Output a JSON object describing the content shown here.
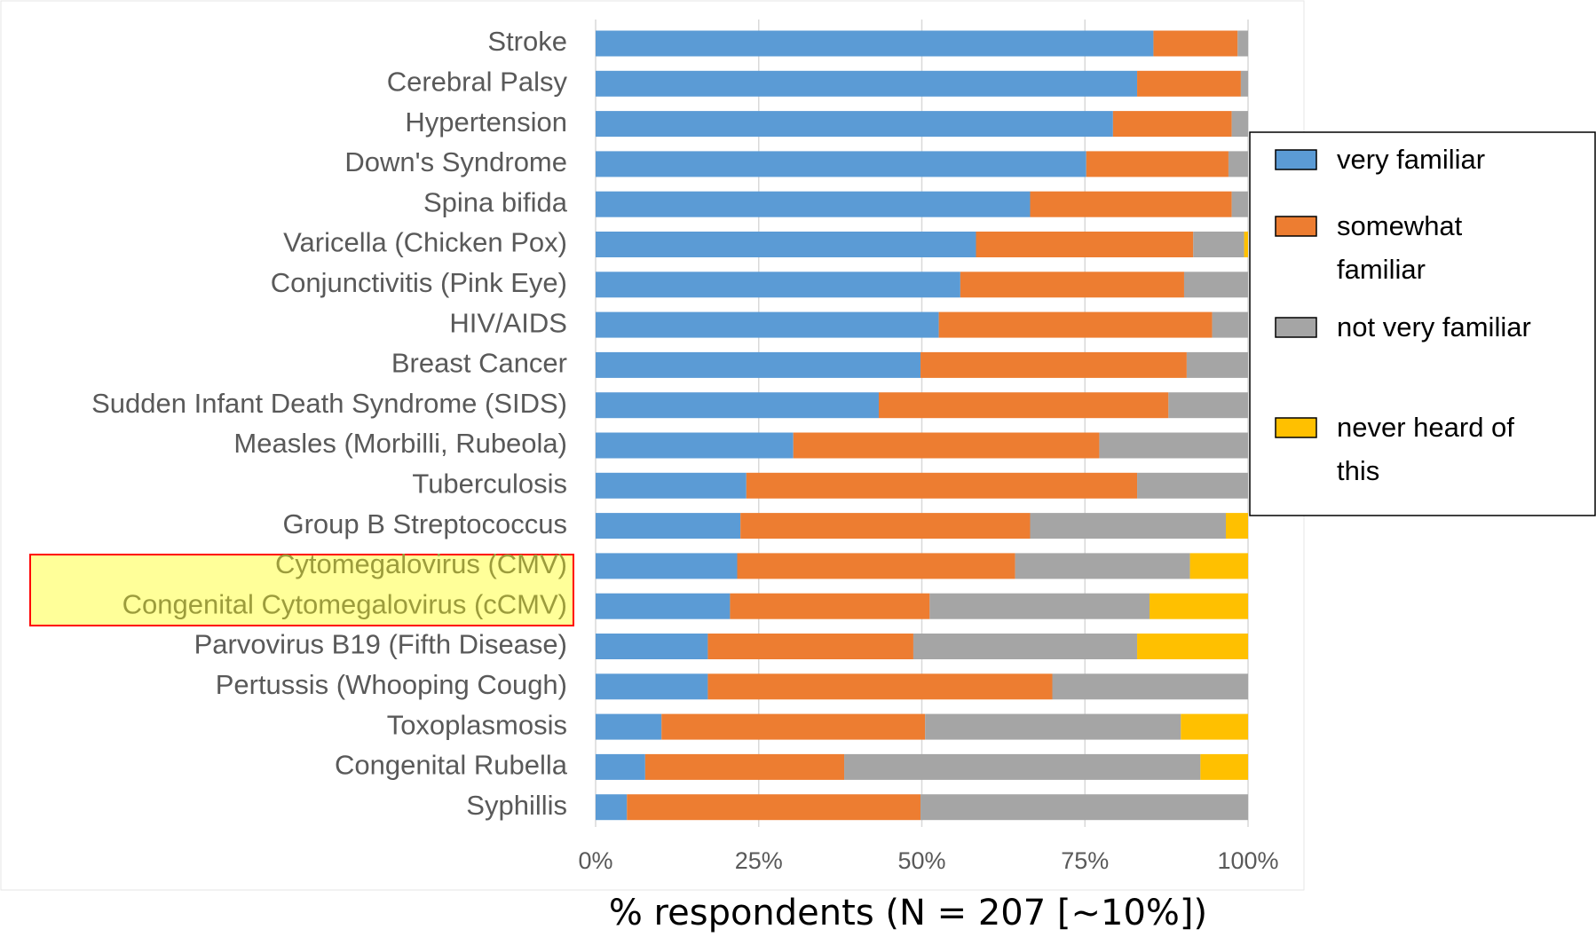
{
  "chart_data": {
    "type": "stacked-bar-horizontal",
    "categories": [
      "Stroke",
      "Cerebral Palsy",
      "Hypertension",
      "Down's Syndrome",
      "Spina bifida",
      "Varicella (Chicken Pox)",
      "Conjunctivitis (Pink Eye)",
      "HIV/AIDS",
      "Breast Cancer",
      "Sudden Infant Death Syndrome (SIDS)",
      "Measles (Morbilli, Rubeola)",
      "Tuberculosis",
      "Group B Streptococcus",
      "Cytomegalovirus (CMV)",
      "Congenital Cytomegalovirus (cCMV)",
      "Parvovirus B19 (Fifth Disease)",
      "Pertussis (Whooping Cough)",
      "Toxoplasmosis",
      "Congenital Rubella",
      "Syphillis"
    ],
    "series": [
      {
        "name": "very familiar",
        "color": "#5b9bd5",
        "values": [
          85.5,
          83,
          79.3,
          75.2,
          66.6,
          58.3,
          55.9,
          52.6,
          49.8,
          43.4,
          30.3,
          23.1,
          22.2,
          21.7,
          20.6,
          17.2,
          17.2,
          10.1,
          7.6,
          4.8
        ]
      },
      {
        "name": "somewhat familiar",
        "color": "#ed7d31",
        "values": [
          12.9,
          15.9,
          18.2,
          21.8,
          30.9,
          33.3,
          34.3,
          41.9,
          40.8,
          44.4,
          46.9,
          59.9,
          44.4,
          42.6,
          30.6,
          31.5,
          52.8,
          40.4,
          30.5,
          45
        ]
      },
      {
        "name": "not very familiar",
        "color": "#a5a5a5",
        "values": [
          1.6,
          1.1,
          2.5,
          3,
          2.5,
          7.8,
          9.8,
          5.5,
          9.4,
          12.2,
          22.8,
          17,
          30,
          26.8,
          33.7,
          34.3,
          30,
          39.2,
          54.6,
          50.2
        ]
      },
      {
        "name": "never heard of this",
        "color": "#ffc000",
        "values": [
          0,
          0,
          0,
          0,
          0,
          0.6,
          0,
          0,
          0,
          0,
          0,
          0,
          3.4,
          8.9,
          15.1,
          17,
          0,
          10.3,
          7.3,
          0
        ]
      }
    ],
    "xlim": [
      0,
      100
    ],
    "xticks": [
      {
        "value": 0,
        "label": "0%"
      },
      {
        "value": 25,
        "label": "25%"
      },
      {
        "value": 50,
        "label": "50%"
      },
      {
        "value": 75,
        "label": "75%"
      },
      {
        "value": 100,
        "label": "100%"
      }
    ],
    "x_label": "% respondents (N = 207 [~10%])",
    "grid": true,
    "legend": "right"
  }
}
